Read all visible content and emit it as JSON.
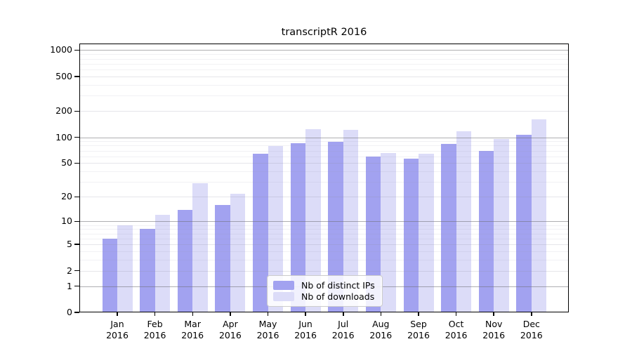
{
  "chart_data": {
    "type": "bar",
    "title": "transcriptR 2016",
    "year_label": "2016",
    "categories": [
      "Jan",
      "Feb",
      "Mar",
      "Apr",
      "May",
      "Jun",
      "Jul",
      "Aug",
      "Sep",
      "Oct",
      "Nov",
      "Dec"
    ],
    "series": [
      {
        "name": "Nb of distinct IPs",
        "color": "#a2a2f0",
        "values": [
          6,
          8,
          14,
          16,
          64,
          85,
          89,
          60,
          57,
          84,
          70,
          106
        ]
      },
      {
        "name": "Nb of downloads",
        "color": "#dcdcf8",
        "values": [
          9,
          12,
          29,
          22,
          79,
          124,
          121,
          66,
          65,
          118,
          95,
          160
        ]
      }
    ],
    "yticks": [
      0,
      1,
      2,
      5,
      10,
      20,
      50,
      100,
      200,
      500,
      1000
    ],
    "yscale": "log10(value+1)",
    "ylim": [
      0,
      1190
    ],
    "grid": true,
    "legend_position": "lower center"
  },
  "colors": {
    "bar_dark": "#a2a2f0",
    "bar_light": "#dcdcf8",
    "grid_decade": "rgba(110,110,115,0.55)",
    "grid_labeled": "rgba(140,140,160,0.22)",
    "grid_minor": "rgba(150,150,170,0.13)",
    "axis": "#000000",
    "legend_border": "#cccccc",
    "background": "#ffffff"
  }
}
